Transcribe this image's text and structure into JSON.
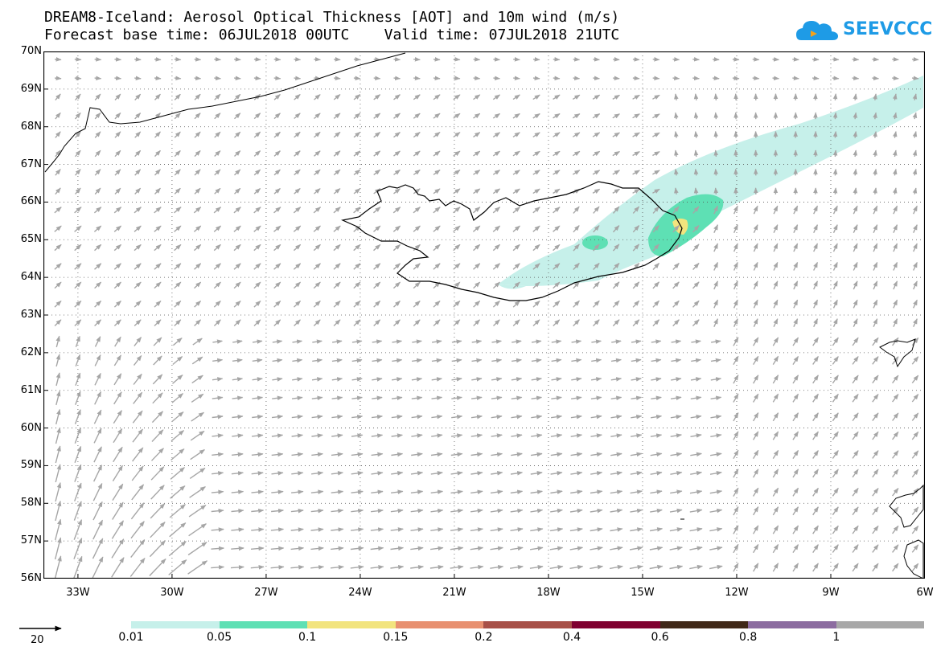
{
  "header": {
    "title_line1": "DREAM8-Iceland: Aerosol Optical Thickness [AOT] and 10m wind (m/s)",
    "title_line2": "Forecast base time: 06JUL2018 00UTC    Valid time: 07JUL2018 21UTC"
  },
  "logo": {
    "text": "SEEVCCC",
    "icon": "cloud-logo-icon",
    "color": "#1e9be6"
  },
  "map": {
    "projection": "lat-lon",
    "lat_range": [
      56,
      70
    ],
    "lon_range": [
      -34.1,
      -6
    ],
    "lat_labels": [
      "70N",
      "69N",
      "68N",
      "67N",
      "66N",
      "65N",
      "64N",
      "63N",
      "62N",
      "61N",
      "60N",
      "59N",
      "58N",
      "57N",
      "56N"
    ],
    "lon_labels": [
      "33W",
      "30W",
      "27W",
      "24W",
      "21W",
      "18W",
      "15W",
      "12W",
      "9W",
      "6W"
    ],
    "gridlines": "dotted",
    "wind_arrow_color": "#a6a6a6",
    "coastline_color": "#000000"
  },
  "wind_reference": {
    "label": "20"
  },
  "colorbar": {
    "colors": [
      "#c6f0ea",
      "#5ee0b4",
      "#f2e47e",
      "#e89070",
      "#a85048",
      "#800030",
      "#402818",
      "#8c6ca0",
      "#a8a8a8"
    ],
    "labels": [
      "0.01",
      "0.05",
      "0.1",
      "0.15",
      "0.2",
      "0.4",
      "0.6",
      "0.8",
      "1"
    ]
  },
  "aot_field": {
    "levels_shown": [
      "0.01",
      "0.05",
      "0.1"
    ],
    "description_levels": {
      "plume_outer": "0.01",
      "plume_core": "0.05",
      "source": "0.1"
    }
  }
}
